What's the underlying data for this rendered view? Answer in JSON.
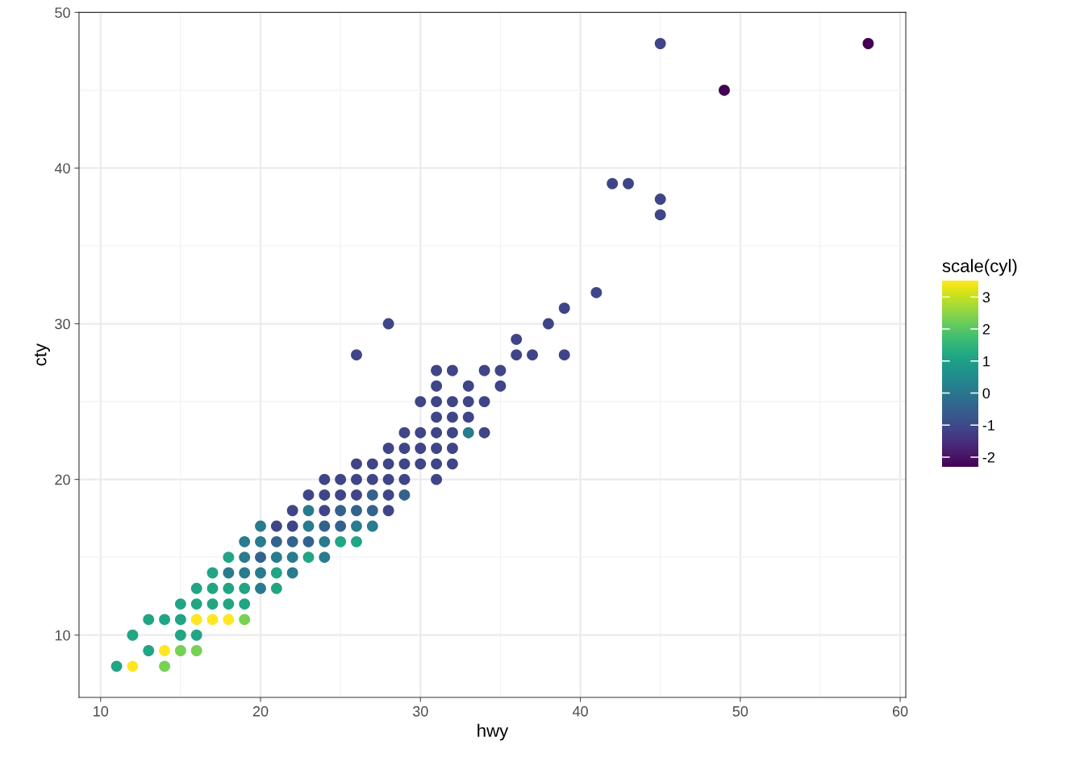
{
  "chart_data": {
    "type": "scatter",
    "xlabel": "hwy",
    "ylabel": "cty",
    "clabel": "scale(cyl)",
    "xlim": [
      8.65,
      60.35
    ],
    "ylim": [
      6,
      50
    ],
    "xticks": [
      10,
      20,
      30,
      40,
      50,
      60
    ],
    "yticks": [
      10,
      20,
      30,
      40,
      50
    ],
    "clim": [
      -2.3,
      3.5
    ],
    "cticks": [
      -2,
      -1,
      0,
      1,
      2,
      3
    ],
    "grid": true,
    "legend": false,
    "marker": "circle",
    "series": [
      {
        "x": [
          11,
          12,
          14,
          13,
          14,
          15,
          16,
          12,
          15,
          16,
          13,
          14,
          15,
          16,
          17,
          18,
          19,
          15,
          16,
          17,
          18,
          19,
          16,
          17,
          18,
          19,
          20,
          21,
          17,
          18,
          19,
          20,
          21,
          22,
          18,
          19,
          20,
          21,
          22,
          23,
          24,
          19,
          20,
          21,
          22,
          23,
          24,
          25,
          26,
          20,
          21,
          22,
          23,
          24,
          25,
          26,
          27,
          22,
          23,
          24,
          25,
          26,
          27,
          28,
          23,
          24,
          25,
          26,
          27,
          28,
          29,
          24,
          25,
          26,
          27,
          28,
          29,
          31,
          26,
          27,
          28,
          29,
          30,
          31,
          32,
          28,
          29,
          30,
          31,
          32,
          29,
          30,
          31,
          32,
          33,
          34,
          31,
          32,
          33,
          30,
          31,
          32,
          33,
          34,
          31,
          33,
          35,
          31,
          32,
          34,
          35,
          26,
          36,
          37,
          39,
          36,
          28,
          38,
          39,
          41,
          45,
          45,
          42,
          43,
          49,
          45,
          58
        ],
        "values": [
          8,
          8,
          8,
          9,
          9,
          9,
          9,
          10,
          10,
          10,
          11,
          11,
          11,
          11,
          11,
          11,
          11,
          12,
          12,
          12,
          12,
          12,
          13,
          13,
          13,
          13,
          13,
          13,
          14,
          14,
          14,
          14,
          14,
          14,
          15,
          15,
          15,
          15,
          15,
          15,
          15,
          16,
          16,
          16,
          16,
          16,
          16,
          16,
          16,
          17,
          17,
          17,
          17,
          17,
          17,
          17,
          17,
          18,
          18,
          18,
          18,
          18,
          18,
          18,
          19,
          19,
          19,
          19,
          19,
          19,
          19,
          20,
          20,
          20,
          20,
          20,
          20,
          20,
          21,
          21,
          21,
          21,
          21,
          21,
          21,
          22,
          22,
          22,
          22,
          22,
          23,
          23,
          23,
          23,
          23,
          23,
          24,
          24,
          24,
          25,
          25,
          25,
          25,
          25,
          26,
          26,
          26,
          27,
          27,
          27,
          27,
          28,
          28,
          28,
          28,
          29,
          30,
          30,
          31,
          32,
          37,
          38,
          39,
          39,
          45,
          48,
          48
        ],
        "cvalues": [
          1.1,
          3.5,
          2.3,
          1.1,
          3.5,
          2.3,
          2.3,
          1.1,
          1.1,
          1.1,
          1.1,
          1.1,
          1.1,
          3.5,
          3.5,
          3.5,
          2.3,
          1.1,
          1.1,
          1.1,
          1.1,
          1.1,
          1.1,
          1.1,
          1.1,
          1.1,
          0.1,
          1.1,
          1.1,
          0.1,
          0.1,
          0.1,
          1.1,
          0.1,
          1.1,
          0.1,
          -0.5,
          0.1,
          0.1,
          1.1,
          0.1,
          0.1,
          0.1,
          -0.5,
          -0.5,
          -0.5,
          0.1,
          1.1,
          1.1,
          0.1,
          -1.1,
          -1.1,
          0.1,
          -0.5,
          -0.5,
          0.1,
          0.1,
          -1.1,
          0.1,
          -1.1,
          -0.5,
          -0.5,
          -0.5,
          -1.1,
          -1.1,
          -1.1,
          -1.1,
          -1.1,
          -0.5,
          -1.1,
          -0.5,
          -1.1,
          -1.1,
          -1.1,
          -1.1,
          -1.1,
          -1.1,
          -1.1,
          -1.1,
          -1.1,
          -1.1,
          -1.1,
          -1.1,
          -1.1,
          -1.1,
          -1.1,
          -1.1,
          -1.1,
          -1.1,
          -1.1,
          -1.1,
          -1.1,
          -1.1,
          -1.1,
          0.1,
          -1.1,
          -1.1,
          -1.1,
          -1.1,
          -1.1,
          -1.1,
          -1.1,
          -1.1,
          -1.1,
          -1.1,
          -1.1,
          -1.1,
          -1.1,
          -1.1,
          -1.1,
          -1.1,
          -1.1,
          -1.1,
          -1.1,
          -1.1,
          -1.1,
          -1.1,
          -1.1,
          -1.1,
          -1.1,
          -1.1,
          -1.1,
          -1.1,
          -1.1,
          -2.3,
          -1.1,
          -2.3
        ]
      }
    ]
  }
}
